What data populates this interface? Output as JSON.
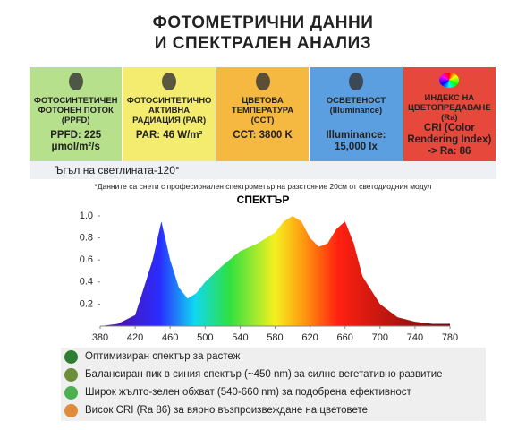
{
  "header": {
    "title_line1": "ФОТОМЕТРИЧНИ ДАННИ",
    "title_line2": "И СПЕКТРАЛЕН АНАЛИЗ"
  },
  "cards": [
    {
      "label": "ФОТОСИНТЕТИЧЕН ФОТОНЕН ПОТОК (PPFD)",
      "value": "PPFD: 225 μmol/m²/s",
      "color": "#b7e08c"
    },
    {
      "label": "ФОТОСИНТЕТИЧНО АКТИВНА РАДИАЦИЯ (PAR)",
      "value": "PAR: 46 W/m²",
      "color": "#f4ec6e"
    },
    {
      "label": "ЦВЕТОВА ТЕМПЕРАТУРА (CCT)",
      "value": "CCT: 3800 K",
      "color": "#f5b840"
    },
    {
      "label": "ОСВЕТЕНОСТ (Illuminance)",
      "value": "Illuminance: 15,000 lx",
      "color": "#5b9fe0"
    },
    {
      "label": "ИНДЕКС НА ЦВЕТОПРЕДАВАНЕ (Ra)",
      "value": "CRI (Color Rendering Index) -> Ra: 86",
      "color": "#e6483b"
    }
  ],
  "angle": "Ъгъл на светлината-120°",
  "note": "*Данните са снети с професионален спектрометър на разстояние 20см от светодиодния модул",
  "chart_data": {
    "type": "area",
    "title": "СПЕКТЪР",
    "x": [
      380,
      400,
      420,
      440,
      450,
      460,
      470,
      480,
      490,
      500,
      520,
      540,
      560,
      580,
      590,
      600,
      610,
      620,
      630,
      640,
      650,
      660,
      670,
      680,
      700,
      720,
      740,
      760,
      780
    ],
    "values": [
      0,
      0.02,
      0.1,
      0.6,
      0.95,
      0.6,
      0.35,
      0.25,
      0.3,
      0.4,
      0.55,
      0.68,
      0.75,
      0.85,
      0.95,
      1.0,
      0.95,
      0.8,
      0.72,
      0.75,
      0.88,
      0.95,
      0.75,
      0.45,
      0.2,
      0.08,
      0.04,
      0.02,
      0.02
    ],
    "xlim": [
      380,
      780
    ],
    "xticks": [
      380,
      420,
      460,
      500,
      540,
      580,
      620,
      660,
      700,
      740,
      780
    ],
    "ylim": [
      0,
      1
    ],
    "yticks": [
      {
        "value": 1,
        "label": "1.0"
      },
      0.8,
      0.6,
      0.4,
      0.2
    ]
  },
  "bullets": [
    "Оптимизиран спектър за растеж",
    "Балансиран пик в синия спектър (~450 nm) за силно вегетативно развитие",
    "Широк жълто-зелен обхват (540-660 nm) за подобрена ефективност",
    "Висок CRI (Ra 86) за вярно възпроизвеждане на цветовете"
  ]
}
